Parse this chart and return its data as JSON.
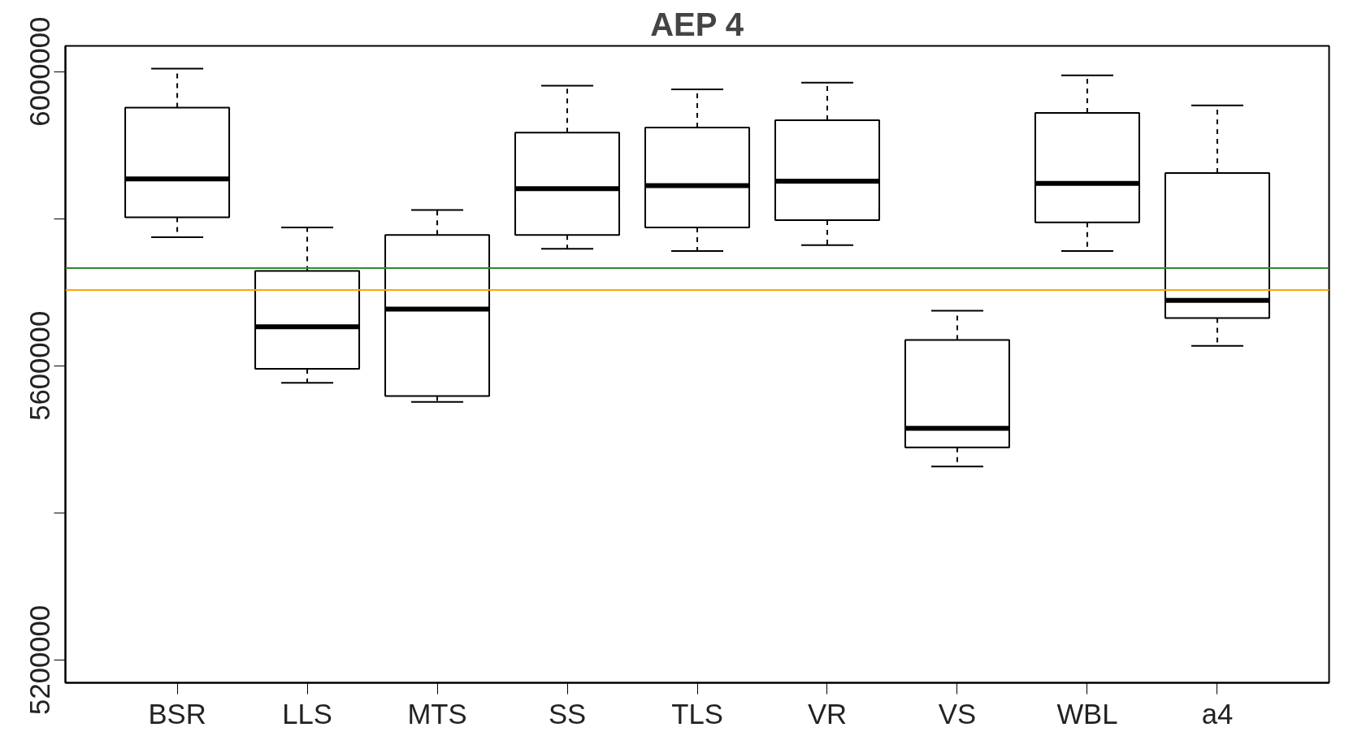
{
  "chart_data": {
    "type": "box",
    "title": "AEP 4",
    "categories": [
      "BSR",
      "LLS",
      "MTS",
      "SS",
      "TLS",
      "VR",
      "VS",
      "WBL",
      "a4"
    ],
    "boxes": [
      {
        "low": 5775000,
        "q1": 5802000,
        "median": 5854000,
        "q3": 5951000,
        "high": 6004000
      },
      {
        "low": 5577000,
        "q1": 5596000,
        "median": 5653000,
        "q3": 5729000,
        "high": 5788000
      },
      {
        "low": 5551000,
        "q1": 5559000,
        "median": 5677000,
        "q3": 5778000,
        "high": 5812000
      },
      {
        "low": 5759000,
        "q1": 5778000,
        "median": 5841000,
        "q3": 5917000,
        "high": 5981000
      },
      {
        "low": 5756000,
        "q1": 5788000,
        "median": 5845000,
        "q3": 5924000,
        "high": 5976000
      },
      {
        "low": 5764000,
        "q1": 5798000,
        "median": 5851000,
        "q3": 5934000,
        "high": 5985000
      },
      {
        "low": 5463000,
        "q1": 5489000,
        "median": 5515000,
        "q3": 5635000,
        "high": 5675000
      },
      {
        "low": 5756000,
        "q1": 5795000,
        "median": 5848000,
        "q3": 5944000,
        "high": 5995000
      },
      {
        "low": 5627000,
        "q1": 5665000,
        "median": 5689000,
        "q3": 5862000,
        "high": 5954000
      }
    ],
    "ylim": [
      5169000,
      6035000
    ],
    "yticks": [
      {
        "value": 5200000,
        "label": "5200000"
      },
      {
        "value": 5400000,
        "label": null
      },
      {
        "value": 5600000,
        "label": "5600000"
      },
      {
        "value": 5800000,
        "label": null
      },
      {
        "value": 6000000,
        "label": "6000000"
      }
    ],
    "ref_lines": [
      {
        "axis": "y",
        "value": 5733000,
        "color": "#2e8b2e"
      },
      {
        "axis": "y",
        "value": 5703000,
        "color": "#ffa500"
      }
    ],
    "grid": false
  }
}
